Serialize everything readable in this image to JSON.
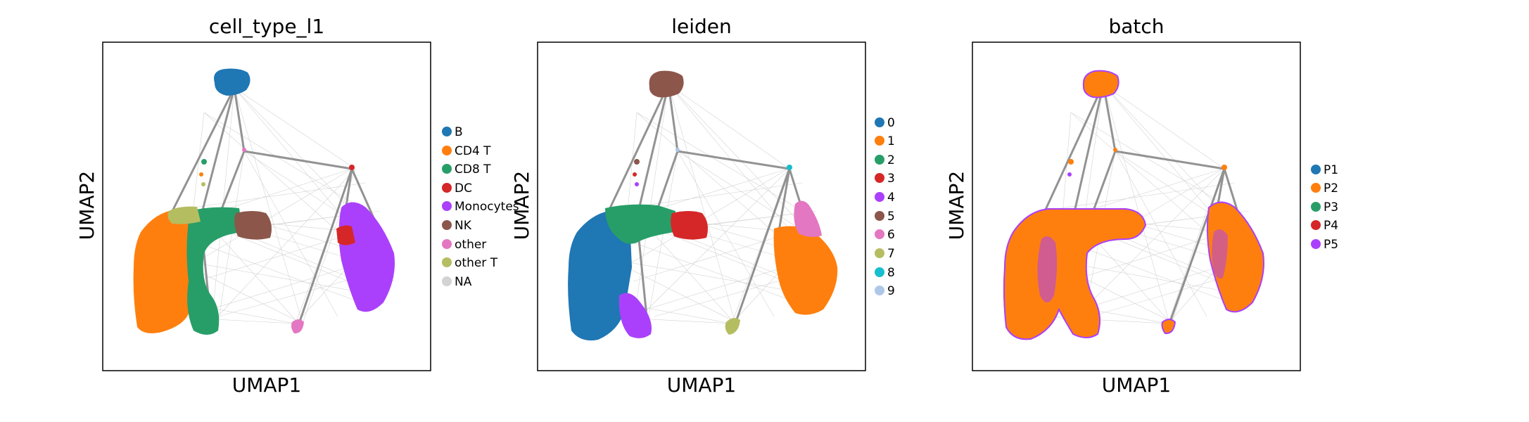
{
  "chart_data": [
    {
      "type": "scatter",
      "title": "cell_type_l1",
      "xlabel": "UMAP1",
      "ylabel": "UMAP2",
      "ticks": "none",
      "legend_position": "right",
      "legend": [
        {
          "label": "B",
          "color": "#1f77b4"
        },
        {
          "label": "CD4 T",
          "color": "#ff7f0e"
        },
        {
          "label": "CD8 T",
          "color": "#279e68"
        },
        {
          "label": "DC",
          "color": "#d62728"
        },
        {
          "label": "Monocytes",
          "color": "#aa40fc"
        },
        {
          "label": "NK",
          "color": "#8c564b"
        },
        {
          "label": "other",
          "color": "#e377c2"
        },
        {
          "label": "other T",
          "color": "#b5bd61"
        },
        {
          "label": "NA",
          "color": "#d3d3d3"
        }
      ]
    },
    {
      "type": "scatter",
      "title": "leiden",
      "xlabel": "UMAP1",
      "ylabel": "UMAP2",
      "ticks": "none",
      "legend_position": "right",
      "legend": [
        {
          "label": "0",
          "color": "#1f77b4"
        },
        {
          "label": "1",
          "color": "#ff7f0e"
        },
        {
          "label": "2",
          "color": "#279e68"
        },
        {
          "label": "3",
          "color": "#d62728"
        },
        {
          "label": "4",
          "color": "#aa40fc"
        },
        {
          "label": "5",
          "color": "#8c564b"
        },
        {
          "label": "6",
          "color": "#e377c2"
        },
        {
          "label": "7",
          "color": "#b5bd61"
        },
        {
          "label": "8",
          "color": "#17becf"
        },
        {
          "label": "9",
          "color": "#aec7e8"
        }
      ]
    },
    {
      "type": "scatter",
      "title": "batch",
      "xlabel": "UMAP1",
      "ylabel": "UMAP2",
      "ticks": "none",
      "legend_position": "right",
      "legend": [
        {
          "label": "P1",
          "color": "#1f77b4"
        },
        {
          "label": "P2",
          "color": "#ff7f0e"
        },
        {
          "label": "P3",
          "color": "#279e68"
        },
        {
          "label": "P4",
          "color": "#d62728"
        },
        {
          "label": "P5",
          "color": "#aa40fc"
        }
      ]
    }
  ],
  "colors": {
    "paga_edge": "#808080",
    "axes_frame": "#000000",
    "background": "#ffffff"
  }
}
